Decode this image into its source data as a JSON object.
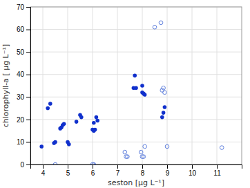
{
  "chart_data": {
    "type": "scatter",
    "xlabel": "seston [µg L⁻¹]",
    "ylabel": "chlorophyll-a [ µg L⁻¹]",
    "xlim": [
      3.5,
      12.0
    ],
    "ylim": [
      0,
      70
    ],
    "xticks": [
      4,
      5,
      6,
      7,
      8,
      9,
      10,
      11
    ],
    "yticks": [
      0,
      10,
      20,
      30,
      40,
      50,
      60,
      70
    ],
    "grid": true,
    "series": [
      {
        "color": "#1030cc",
        "marker": "circle",
        "x": [
          3.95,
          4.2,
          4.3,
          4.45,
          4.5,
          4.7,
          4.75,
          4.8,
          4.85,
          5.0,
          5.05,
          5.35,
          5.5,
          5.55,
          6.0,
          6.05,
          6.05,
          6.1,
          6.15,
          6.2,
          7.65,
          7.7,
          7.75,
          8.0,
          8.0,
          8.05,
          8.1,
          8.8,
          8.85,
          8.9
        ],
        "values": [
          8.0,
          25.0,
          27.0,
          9.5,
          10.0,
          16.0,
          16.5,
          17.5,
          18.0,
          10.0,
          9.0,
          19.0,
          22.0,
          21.0,
          15.5,
          15.0,
          18.5,
          15.5,
          21.0,
          19.5,
          34.0,
          39.5,
          34.0,
          35.0,
          32.0,
          31.5,
          31.0,
          21.0,
          23.0,
          25.5
        ]
      },
      {
        "color": "#6080dd",
        "marker": "open-circle",
        "x": [
          4.5,
          6.0,
          6.05,
          7.3,
          7.35,
          7.4,
          7.95,
          8.0,
          8.05,
          8.1,
          8.5,
          8.75,
          8.8,
          8.85,
          8.9,
          9.0,
          11.2
        ],
        "values": [
          0.0,
          0.0,
          0.0,
          5.5,
          3.5,
          3.5,
          5.5,
          3.5,
          3.5,
          8.0,
          61.0,
          63.0,
          33.0,
          34.0,
          32.0,
          8.0,
          7.5
        ]
      }
    ]
  }
}
